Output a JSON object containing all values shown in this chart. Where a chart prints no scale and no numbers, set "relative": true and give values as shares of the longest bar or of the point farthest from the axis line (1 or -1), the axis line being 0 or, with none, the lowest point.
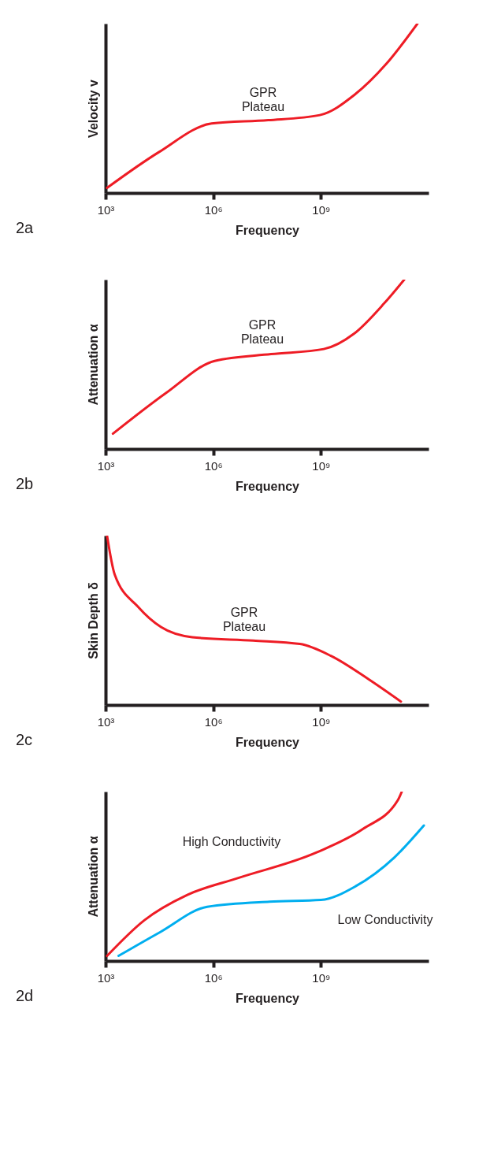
{
  "chart_data": [
    {
      "type": "line",
      "title": "2a",
      "xlabel": "Frequency",
      "ylabel": "Velocity v",
      "relative": true,
      "log": "x",
      "xlim": [
        1000,
        1000000000000.0
      ],
      "xticks": [
        {
          "value": 1000,
          "label": "10³"
        },
        {
          "value": 1000000,
          "label": "10⁶"
        },
        {
          "value": 1000000000,
          "label": "10⁹"
        }
      ],
      "x": [
        1100,
        30000,
        900000,
        34000000,
        930000000,
        8700000000,
        65000000000,
        490000000000
      ],
      "series": [
        {
          "color": "#ee1c25",
          "values": [
            0.03,
            0.24,
            0.41,
            0.43,
            0.46,
            0.58,
            0.76,
            1
          ]
        }
      ],
      "annotations": [
        "GPR\nPlateau"
      ],
      "grid": false,
      "legend": false,
      "marker": "none",
      "line_style": "solid"
    },
    {
      "type": "line",
      "title": "2b",
      "xlabel": "Frequency",
      "ylabel": "Attenuation α",
      "relative": true,
      "log": "x",
      "xlim": [
        1000,
        1000000000000.0
      ],
      "xticks": [
        {
          "value": 1000,
          "label": "10³"
        },
        {
          "value": 1000000,
          "label": "10⁶"
        },
        {
          "value": 1000000000,
          "label": "10⁹"
        }
      ],
      "x": [
        1600,
        48000,
        1100000,
        41000000,
        1200000000,
        8300000000,
        58000000000,
        210000000000
      ],
      "series": [
        {
          "color": "#ee1c25",
          "values": [
            0.09,
            0.33,
            0.52,
            0.56,
            0.59,
            0.68,
            0.86,
            1
          ]
        }
      ],
      "annotations": [
        "GPR\nPlateau"
      ],
      "grid": false,
      "legend": false,
      "marker": "none",
      "line_style": "solid"
    },
    {
      "type": "line",
      "title": "2c",
      "xlabel": "Frequency",
      "ylabel": "Skin Depth δ",
      "relative": true,
      "log": "x",
      "xlim": [
        1000,
        1000000000000.0
      ],
      "xticks": [
        {
          "value": 1000,
          "label": "10³"
        },
        {
          "value": 1000000,
          "label": "10⁶"
        },
        {
          "value": 1000000000,
          "label": "10⁹"
        }
      ],
      "x": [
        1100,
        1800,
        8000,
        35000,
        260000,
        13000000,
        260000000,
        1900000000,
        22000000000,
        170000000000
      ],
      "series": [
        {
          "color": "#ee1c25",
          "values": [
            1,
            0.77,
            0.58,
            0.46,
            0.4,
            0.38,
            0.36,
            0.29,
            0.15,
            0.02
          ]
        }
      ],
      "annotations": [
        "GPR\nPlateau"
      ],
      "grid": false,
      "legend": false,
      "marker": "none",
      "line_style": "solid"
    },
    {
      "type": "line",
      "title": "2d",
      "xlabel": "Frequency",
      "ylabel": "Attenuation α",
      "relative": true,
      "log": "x",
      "xlim": [
        1000,
        1000000000000.0
      ],
      "xticks": [
        {
          "value": 1000,
          "label": "10³"
        },
        {
          "value": 1000000,
          "label": "10⁶"
        },
        {
          "value": 1000000000,
          "label": "10⁹"
        }
      ],
      "series": [
        {
          "color": "#ee1c25",
          "x": [
            1100,
            12000,
            190000,
            5000000,
            740000000,
            15000000000,
            140000000000,
            180000000000
          ],
          "values": [
            0.03,
            0.24,
            0.39,
            0.49,
            0.64,
            0.78,
            0.95,
            1
          ]
        },
        {
          "color": "#00aeef",
          "x": [
            2300,
            33000,
            680000,
            37000000,
            1000000000,
            9100000000,
            110000000000,
            740000000000
          ],
          "values": [
            0.03,
            0.17,
            0.32,
            0.35,
            0.36,
            0.44,
            0.61,
            0.8
          ]
        }
      ],
      "annotations": [
        "High Conductivity",
        "Low Conductivity"
      ],
      "grid": false,
      "legend": false,
      "marker": "none",
      "line_style": "solid"
    }
  ]
}
